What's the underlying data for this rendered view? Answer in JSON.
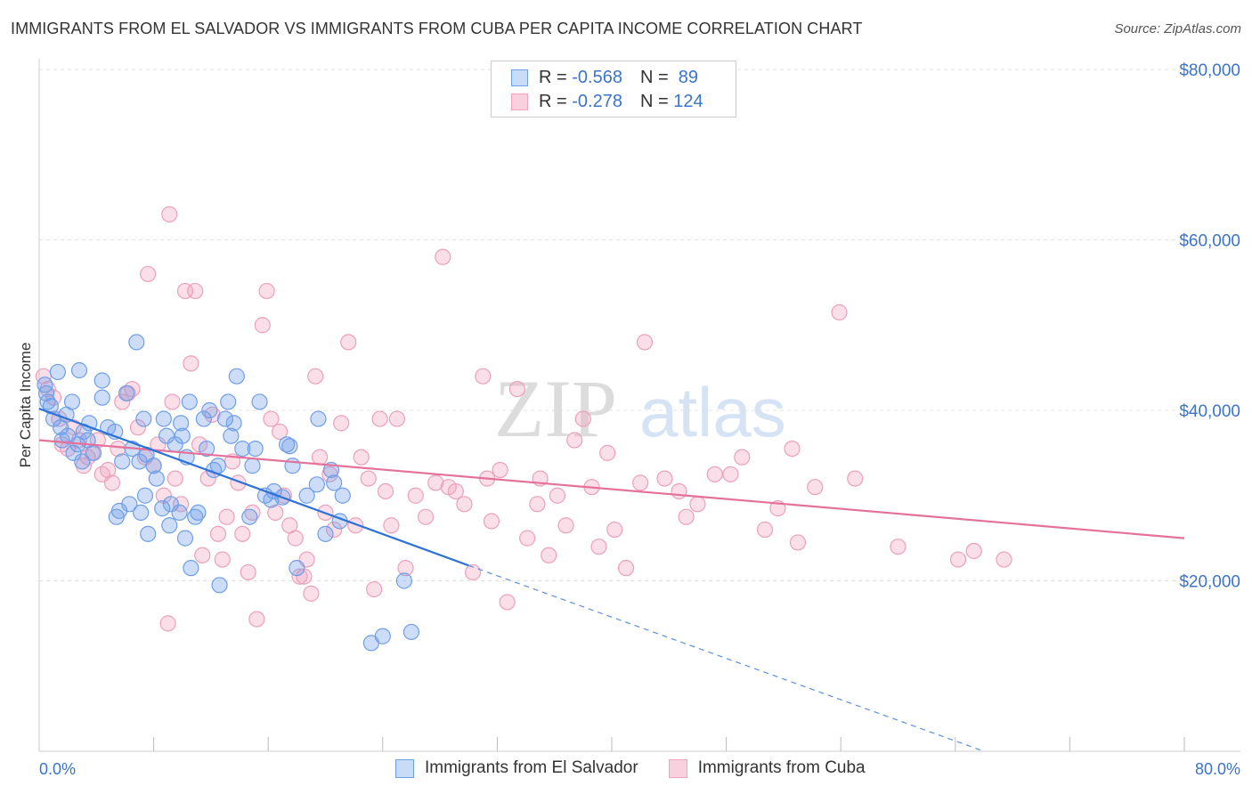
{
  "title": "IMMIGRANTS FROM EL SALVADOR VS IMMIGRANTS FROM CUBA PER CAPITA INCOME CORRELATION CHART",
  "source": "Source: ZipAtlas.com",
  "watermark": {
    "zip": "ZIP",
    "atlas": "atlas"
  },
  "legend": {
    "r_label": "R =",
    "n_label": "N =",
    "rows": [
      {
        "r": "-0.568",
        "n": "89",
        "color": "#6f9fe8"
      },
      {
        "r": "-0.278",
        "n": "124",
        "color": "#f1a3bd"
      }
    ]
  },
  "chart_data": {
    "type": "scatter",
    "title": "IMMIGRANTS FROM EL SALVADOR VS IMMIGRANTS FROM CUBA PER CAPITA INCOME CORRELATION CHART",
    "xlabel": "",
    "ylabel": "Per Capita Income",
    "xlim": [
      0,
      80
    ],
    "ylim": [
      0,
      80000
    ],
    "x_tick_labels": [
      "0.0%",
      "80.0%"
    ],
    "y_ticks": [
      20000,
      40000,
      60000,
      80000
    ],
    "y_tick_labels": [
      "$20,000",
      "$40,000",
      "$60,000",
      "$80,000"
    ],
    "grid": true,
    "legend_position": "top-center",
    "series": [
      {
        "name": "Immigrants from El Salvador",
        "color": "#6f9fe8",
        "trend": {
          "x0": 0,
          "y0": 40200,
          "x1": 30,
          "y1": 21800,
          "dashed_to_x": 66,
          "dashed_to_y": 0
        },
        "points": [
          [
            0.4,
            43000
          ],
          [
            0.5,
            42000
          ],
          [
            0.6,
            41000
          ],
          [
            1.0,
            39000
          ],
          [
            1.3,
            44500
          ],
          [
            1.5,
            38000
          ],
          [
            1.9,
            39500
          ],
          [
            2.0,
            37000
          ],
          [
            2.3,
            41000
          ],
          [
            2.8,
            44700
          ],
          [
            2.7,
            36000
          ],
          [
            3.0,
            34000
          ],
          [
            3.4,
            36500
          ],
          [
            3.5,
            38500
          ],
          [
            3.8,
            35000
          ],
          [
            4.4,
            41500
          ],
          [
            4.4,
            43500
          ],
          [
            4.8,
            38000
          ],
          [
            5.3,
            37500
          ],
          [
            5.4,
            27500
          ],
          [
            5.6,
            28200
          ],
          [
            5.8,
            34000
          ],
          [
            6.1,
            42000
          ],
          [
            6.3,
            29000
          ],
          [
            6.5,
            35500
          ],
          [
            6.8,
            48000
          ],
          [
            7.0,
            34000
          ],
          [
            7.1,
            28000
          ],
          [
            7.3,
            39000
          ],
          [
            7.4,
            30000
          ],
          [
            7.5,
            34800
          ],
          [
            7.6,
            25500
          ],
          [
            8.0,
            33500
          ],
          [
            8.2,
            32000
          ],
          [
            8.6,
            28500
          ],
          [
            8.7,
            39000
          ],
          [
            8.9,
            37000
          ],
          [
            9.1,
            26500
          ],
          [
            9.2,
            29000
          ],
          [
            9.5,
            36000
          ],
          [
            9.9,
            38500
          ],
          [
            10.0,
            37000
          ],
          [
            10.5,
            41000
          ],
          [
            10.3,
            34500
          ],
          [
            10.2,
            25000
          ],
          [
            10.6,
            21500
          ],
          [
            10.9,
            27500
          ],
          [
            11.1,
            28000
          ],
          [
            11.5,
            39000
          ],
          [
            11.7,
            35500
          ],
          [
            11.9,
            40000
          ],
          [
            12.2,
            33000
          ],
          [
            12.5,
            33500
          ],
          [
            12.6,
            19500
          ],
          [
            13.0,
            39000
          ],
          [
            13.2,
            41000
          ],
          [
            13.4,
            37000
          ],
          [
            13.6,
            38500
          ],
          [
            13.8,
            44000
          ],
          [
            14.2,
            35500
          ],
          [
            14.7,
            27500
          ],
          [
            14.9,
            33500
          ],
          [
            15.1,
            35500
          ],
          [
            15.4,
            41000
          ],
          [
            15.8,
            30000
          ],
          [
            16.2,
            29500
          ],
          [
            16.4,
            30500
          ],
          [
            17.0,
            29800
          ],
          [
            17.3,
            36000
          ],
          [
            17.5,
            35800
          ],
          [
            17.7,
            33500
          ],
          [
            18.0,
            21500
          ],
          [
            18.7,
            30000
          ],
          [
            19.4,
            31300
          ],
          [
            19.5,
            39000
          ],
          [
            20.0,
            25500
          ],
          [
            20.4,
            33000
          ],
          [
            20.6,
            31500
          ],
          [
            21.0,
            27000
          ],
          [
            21.2,
            30000
          ],
          [
            23.2,
            12700
          ],
          [
            24.0,
            13500
          ],
          [
            25.5,
            20000
          ],
          [
            26.0,
            14000
          ],
          [
            0.8,
            40500
          ],
          [
            1.6,
            36500
          ],
          [
            2.4,
            35000
          ],
          [
            3.1,
            37500
          ],
          [
            9.8,
            28000
          ]
        ]
      },
      {
        "name": "Immigrants from Cuba",
        "color": "#f1a3bd",
        "trend": {
          "x0": 0,
          "y0": 36500,
          "x1": 80,
          "y1": 25000
        },
        "points": [
          [
            0.3,
            44000
          ],
          [
            0.6,
            42500
          ],
          [
            1.0,
            41500
          ],
          [
            1.4,
            39000
          ],
          [
            1.6,
            36000
          ],
          [
            2.0,
            35500
          ],
          [
            2.4,
            38000
          ],
          [
            2.8,
            36500
          ],
          [
            3.1,
            33500
          ],
          [
            3.4,
            34500
          ],
          [
            3.7,
            35000
          ],
          [
            4.1,
            36500
          ],
          [
            4.4,
            32500
          ],
          [
            4.8,
            33000
          ],
          [
            5.1,
            31500
          ],
          [
            5.5,
            35500
          ],
          [
            5.8,
            41000
          ],
          [
            6.2,
            42000
          ],
          [
            6.5,
            42500
          ],
          [
            6.9,
            38000
          ],
          [
            7.4,
            34500
          ],
          [
            7.6,
            56000
          ],
          [
            8.0,
            33500
          ],
          [
            8.3,
            36000
          ],
          [
            8.7,
            30000
          ],
          [
            9.1,
            63000
          ],
          [
            9.3,
            41000
          ],
          [
            9.0,
            15000
          ],
          [
            9.5,
            32000
          ],
          [
            9.9,
            29000
          ],
          [
            10.2,
            54000
          ],
          [
            10.6,
            45500
          ],
          [
            10.9,
            54000
          ],
          [
            11.2,
            36000
          ],
          [
            11.4,
            23000
          ],
          [
            11.8,
            32000
          ],
          [
            12.1,
            39500
          ],
          [
            12.5,
            25500
          ],
          [
            12.8,
            22500
          ],
          [
            13.1,
            27500
          ],
          [
            13.5,
            34000
          ],
          [
            13.9,
            31500
          ],
          [
            14.2,
            25500
          ],
          [
            14.6,
            21000
          ],
          [
            14.9,
            28000
          ],
          [
            15.2,
            15500
          ],
          [
            15.6,
            50000
          ],
          [
            15.9,
            54000
          ],
          [
            16.2,
            39000
          ],
          [
            16.5,
            28000
          ],
          [
            16.8,
            37500
          ],
          [
            17.1,
            30000
          ],
          [
            17.5,
            26500
          ],
          [
            17.9,
            25000
          ],
          [
            18.2,
            20500
          ],
          [
            18.5,
            20500
          ],
          [
            18.7,
            22500
          ],
          [
            19.0,
            18500
          ],
          [
            19.3,
            44000
          ],
          [
            19.6,
            34500
          ],
          [
            20.0,
            28000
          ],
          [
            20.3,
            32500
          ],
          [
            20.6,
            26000
          ],
          [
            21.1,
            38500
          ],
          [
            21.6,
            48000
          ],
          [
            22.1,
            26500
          ],
          [
            22.5,
            34500
          ],
          [
            23.0,
            32000
          ],
          [
            23.4,
            19000
          ],
          [
            23.8,
            39000
          ],
          [
            24.2,
            30500
          ],
          [
            24.6,
            26500
          ],
          [
            25.0,
            39000
          ],
          [
            25.6,
            21500
          ],
          [
            26.3,
            30000
          ],
          [
            27.0,
            27500
          ],
          [
            27.7,
            31500
          ],
          [
            28.2,
            58000
          ],
          [
            28.6,
            31000
          ],
          [
            29.1,
            30500
          ],
          [
            29.7,
            29000
          ],
          [
            30.3,
            21000
          ],
          [
            31.0,
            44000
          ],
          [
            31.3,
            32000
          ],
          [
            31.6,
            27000
          ],
          [
            32.2,
            33000
          ],
          [
            32.7,
            17500
          ],
          [
            33.4,
            42500
          ],
          [
            34.1,
            25000
          ],
          [
            34.8,
            29000
          ],
          [
            35.0,
            32000
          ],
          [
            35.6,
            23000
          ],
          [
            36.2,
            30000
          ],
          [
            36.8,
            26500
          ],
          [
            37.4,
            36500
          ],
          [
            38.0,
            39000
          ],
          [
            38.6,
            31000
          ],
          [
            39.1,
            24000
          ],
          [
            39.7,
            35000
          ],
          [
            40.2,
            26000
          ],
          [
            41.0,
            21500
          ],
          [
            42.0,
            31500
          ],
          [
            42.3,
            48000
          ],
          [
            43.7,
            32000
          ],
          [
            44.7,
            30500
          ],
          [
            45.2,
            27500
          ],
          [
            46.0,
            29000
          ],
          [
            47.2,
            32500
          ],
          [
            48.3,
            32500
          ],
          [
            49.1,
            34500
          ],
          [
            50.7,
            26000
          ],
          [
            51.6,
            28500
          ],
          [
            52.6,
            35500
          ],
          [
            53.0,
            24500
          ],
          [
            54.2,
            31000
          ],
          [
            55.9,
            51500
          ],
          [
            57.0,
            32000
          ],
          [
            60.0,
            24000
          ],
          [
            64.2,
            22500
          ],
          [
            65.3,
            23500
          ],
          [
            67.4,
            22500
          ]
        ]
      }
    ]
  },
  "bottom_legend": [
    {
      "label": "Immigrants from El Salvador",
      "color": "#6f9fe8"
    },
    {
      "label": "Immigrants from Cuba",
      "color": "#f1a3bd"
    }
  ]
}
